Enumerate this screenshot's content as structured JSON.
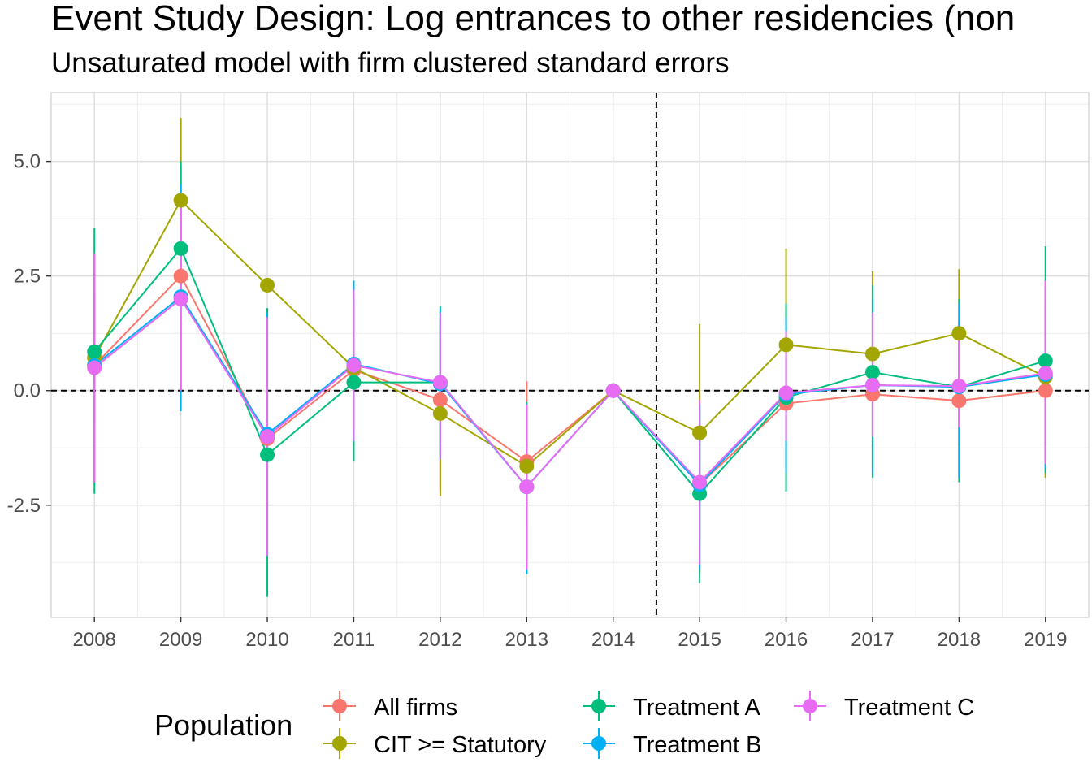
{
  "chart_data": {
    "type": "line",
    "title": "Event Study Design: Log entrances to other residencies (non",
    "subtitle": "Unsaturated model with firm clustered standard errors",
    "xlabel": "",
    "ylabel": "",
    "x": [
      2008,
      2009,
      2010,
      2011,
      2012,
      2013,
      2014,
      2015,
      2016,
      2017,
      2018,
      2019
    ],
    "x_tick_labels": [
      "2008",
      "2009",
      "2010",
      "2011",
      "2012",
      "2013",
      "2014",
      "2015",
      "2016",
      "2017",
      "2018",
      "2019"
    ],
    "y_ticks": [
      -2.5,
      0.0,
      2.5,
      5.0
    ],
    "y_tick_labels": [
      "-2.5",
      "0.0",
      "2.5",
      "5.0"
    ],
    "xlim": [
      2007.5,
      2019.5
    ],
    "ylim": [
      -4.95,
      6.5
    ],
    "reference_lines": {
      "h": 0,
      "v": 2014.5,
      "style": "dashed"
    },
    "grid": true,
    "legend": {
      "title": "Population",
      "position": "bottom"
    },
    "series": [
      {
        "name": "All firms",
        "color": "#F8766D",
        "values": [
          0.55,
          2.5,
          -1.05,
          0.45,
          -0.2,
          -1.55,
          0.0,
          -2.05,
          -0.28,
          -0.08,
          -0.22,
          0.0
        ],
        "lower": [
          -1.9,
          0.0,
          -3.6,
          -1.0,
          -2.2,
          -3.8,
          0.0,
          -4.0,
          -2.0,
          -1.8,
          -1.9,
          -1.9
        ],
        "upper": [
          2.9,
          4.9,
          1.6,
          1.9,
          1.6,
          0.2,
          0.0,
          0.0,
          1.5,
          1.7,
          1.5,
          1.9
        ]
      },
      {
        "name": "CIT >= Statutory",
        "color": "#A3A500",
        "values": [
          0.72,
          4.15,
          2.3,
          0.5,
          -0.5,
          -1.65,
          0.0,
          -0.92,
          1.0,
          0.8,
          1.25,
          0.3
        ],
        "lower": [
          -0.7,
          2.3,
          2.3,
          -0.8,
          -2.3,
          -2.9,
          0.0,
          -3.3,
          -1.1,
          -1.0,
          -0.2,
          -1.9
        ],
        "upper": [
          2.2,
          5.95,
          2.3,
          1.8,
          1.3,
          -0.3,
          0.0,
          1.45,
          3.1,
          2.6,
          2.65,
          2.45
        ]
      },
      {
        "name": "Treatment A",
        "color": "#00BF7D",
        "values": [
          0.85,
          3.1,
          -1.4,
          0.18,
          0.18,
          -2.1,
          0.0,
          -2.25,
          -0.15,
          0.4,
          0.08,
          0.65
        ],
        "lower": [
          -2.25,
          0.0,
          -4.5,
          -1.55,
          -1.5,
          -4.0,
          0.0,
          -4.2,
          -2.2,
          -1.9,
          -2.0,
          -1.8
        ],
        "upper": [
          3.55,
          5.0,
          1.8,
          2.0,
          1.85,
          -0.25,
          0.0,
          -0.3,
          1.9,
          2.3,
          2.0,
          3.15
        ]
      },
      {
        "name": "Treatment B",
        "color": "#00B0F6",
        "values": [
          0.55,
          2.05,
          -0.95,
          0.58,
          0.15,
          -2.1,
          0.0,
          -2.05,
          -0.08,
          0.12,
          0.08,
          0.35
        ],
        "lower": [
          -2.0,
          -0.45,
          -3.6,
          -1.1,
          -1.5,
          -4.0,
          0.0,
          -3.9,
          -1.8,
          -1.8,
          -1.9,
          -1.7
        ],
        "upper": [
          3.0,
          4.5,
          1.7,
          2.4,
          1.8,
          -0.3,
          0.0,
          -0.3,
          1.6,
          2.0,
          1.9,
          2.4
        ]
      },
      {
        "name": "Treatment C",
        "color": "#E76BF3",
        "values": [
          0.5,
          2.0,
          -1.0,
          0.55,
          0.18,
          -2.1,
          0.0,
          -2.0,
          -0.05,
          0.12,
          0.1,
          0.38
        ],
        "lower": [
          -2.0,
          0.0,
          -3.6,
          -1.1,
          -1.5,
          -3.9,
          0.0,
          -3.8,
          -1.1,
          -1.0,
          -0.8,
          -1.6
        ],
        "upper": [
          3.0,
          4.0,
          1.6,
          2.2,
          1.7,
          -0.3,
          0.0,
          -0.2,
          1.3,
          1.7,
          1.4,
          2.4
        ]
      }
    ]
  }
}
